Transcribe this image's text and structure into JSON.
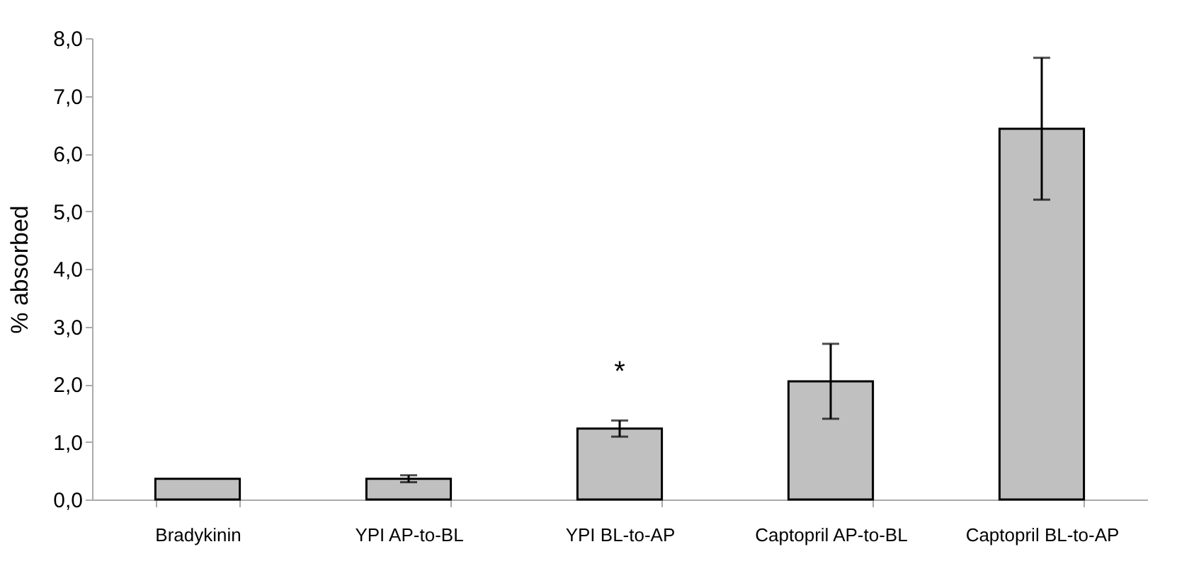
{
  "chart_data": {
    "type": "bar",
    "ylabel": "% absorbed",
    "categories": [
      "Bradykinin",
      "YPI  AP-to-BL",
      "YPI   BL-to-AP",
      "Captopril  AP-to-BL",
      "Captopril  BL-to-AP"
    ],
    "values": [
      0.36,
      0.36,
      1.23,
      2.05,
      6.43
    ],
    "errors": [
      null,
      0.06,
      0.14,
      0.65,
      1.23
    ],
    "color": "#c0c0c0",
    "ylim": [
      0,
      8
    ],
    "yticks": [
      {
        "value": 0,
        "label": "0,0"
      },
      {
        "value": 1,
        "label": "1,0"
      },
      {
        "value": 2,
        "label": "2,0"
      },
      {
        "value": 3,
        "label": "3,0"
      },
      {
        "value": 4,
        "label": "4,0"
      },
      {
        "value": 5,
        "label": "5,0"
      },
      {
        "value": 6,
        "label": "6,0"
      },
      {
        "value": 7,
        "label": "7,0"
      },
      {
        "value": 8,
        "label": "8,0"
      }
    ],
    "annotations": [
      "*"
    ],
    "grid": false
  }
}
